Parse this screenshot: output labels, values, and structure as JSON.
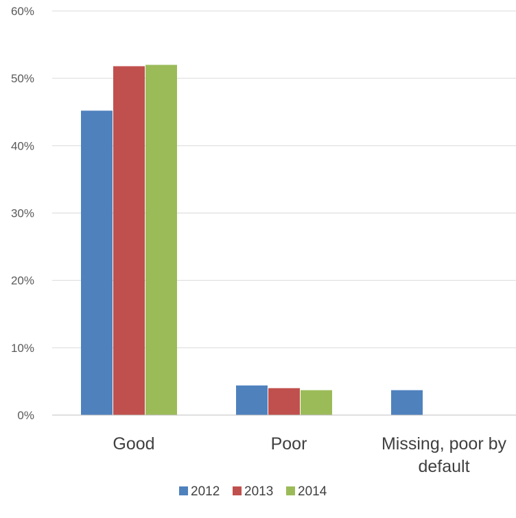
{
  "chart_data": {
    "type": "bar",
    "title": "",
    "xlabel": "",
    "ylabel": "",
    "categories": [
      [
        "Good"
      ],
      [
        "Poor"
      ],
      [
        "Missing, poor by",
        "default"
      ]
    ],
    "series": [
      {
        "name": "2012",
        "color": "#4f81bd",
        "values": [
          45.2,
          4.4,
          3.7
        ]
      },
      {
        "name": "2013",
        "color": "#c0504d",
        "values": [
          51.8,
          4.0,
          null
        ]
      },
      {
        "name": "2014",
        "color": "#9bbb59",
        "values": [
          52.0,
          3.7,
          null
        ]
      }
    ],
    "ylim": [
      0,
      60
    ],
    "yticks": [
      {
        "value": 0,
        "label": "0%"
      },
      {
        "value": 10,
        "label": "10%"
      },
      {
        "value": 20,
        "label": "20%"
      },
      {
        "value": 30,
        "label": "30%"
      },
      {
        "value": 40,
        "label": "40%"
      },
      {
        "value": 50,
        "label": "50%"
      },
      {
        "value": 60,
        "label": "60%"
      }
    ],
    "grid": true,
    "legend_position": "bottom"
  }
}
